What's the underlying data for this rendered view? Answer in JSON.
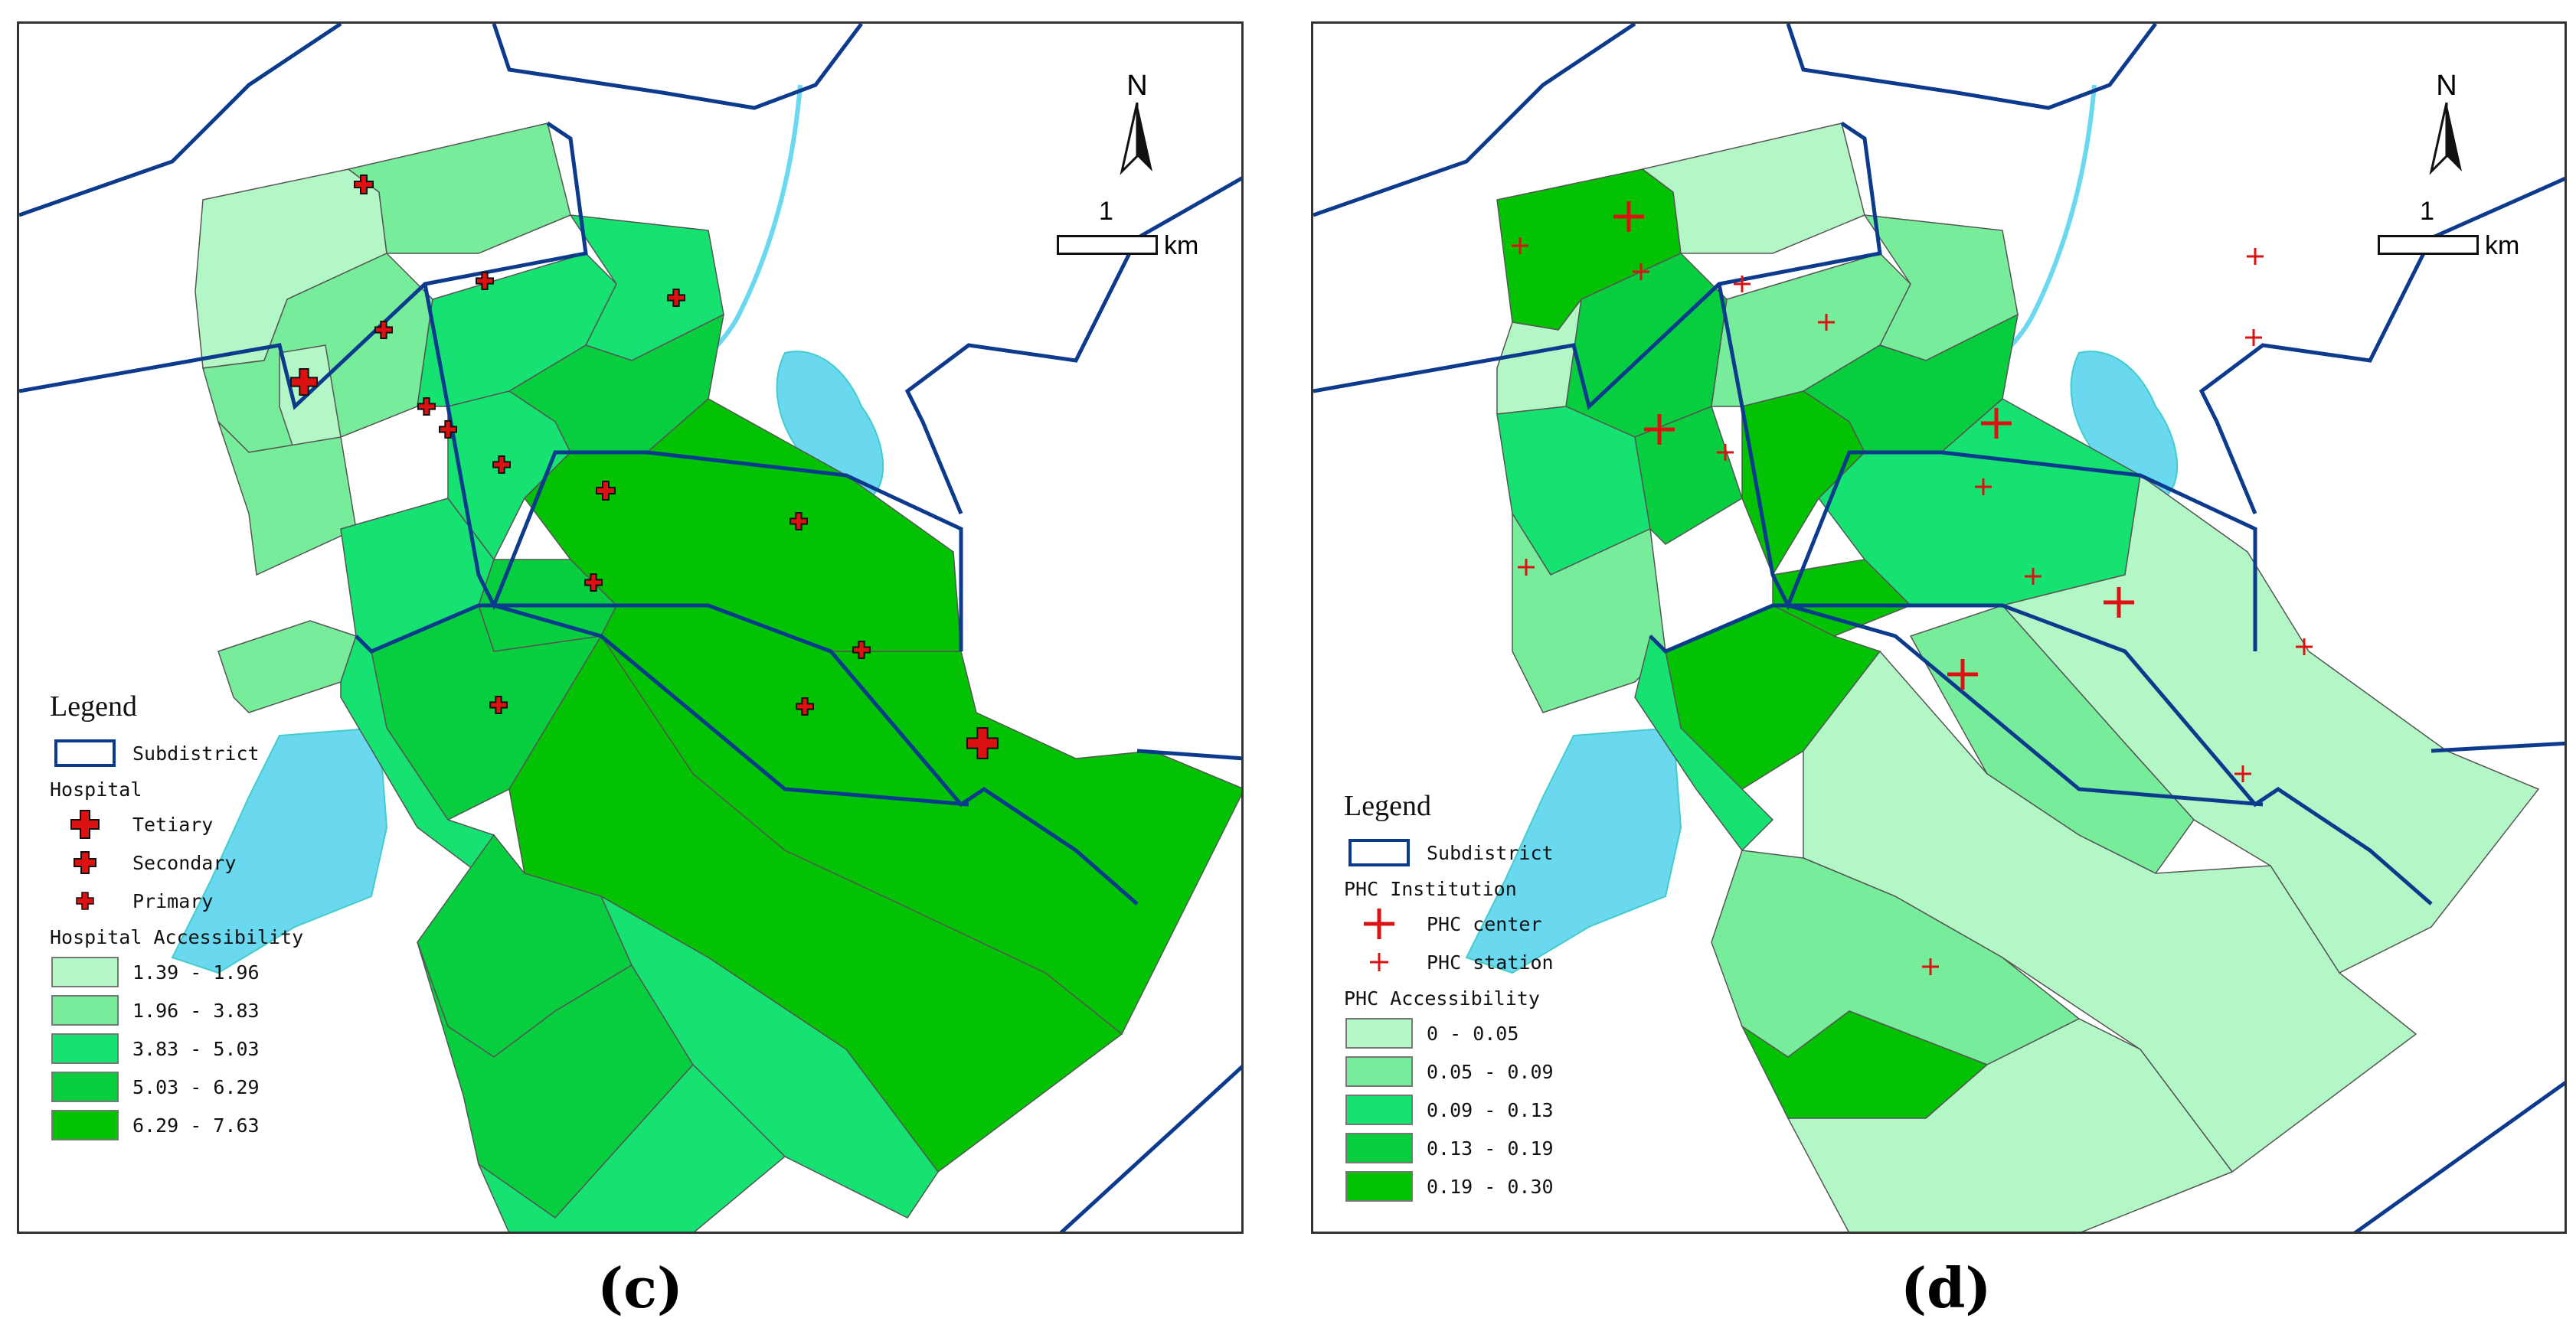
{
  "colors": {
    "water": "#6ad8ef",
    "boundary": "#0c3a8c",
    "tract_line": "#555555",
    "marker": "#dd1111",
    "class1": "#b3f7c6",
    "class2": "#77ec9a",
    "class3": "#16e271",
    "class4": "#07ce3e",
    "class5": "#03c203"
  },
  "panel_c": {
    "caption": "(c)",
    "legend": {
      "title": "Legend",
      "subdistrict": "Subdistrict",
      "facility_heading": "Hospital",
      "facilities": [
        {
          "label": "Tetiary",
          "icon": "large-red-cross-icon"
        },
        {
          "label": "Secondary",
          "icon": "medium-red-cross-icon"
        },
        {
          "label": "Primary",
          "icon": "small-red-cross-icon"
        }
      ],
      "accessibility_heading": "Hospital Accessibility",
      "classes": [
        "1.39 - 1.96",
        "1.96 - 3.83",
        "3.83 - 5.03",
        "5.03 - 6.29",
        "6.29 - 7.63"
      ]
    },
    "north_label": "N",
    "scale": {
      "value": "1",
      "unit": "km"
    }
  },
  "panel_d": {
    "caption": "(d)",
    "legend": {
      "title": "Legend",
      "subdistrict": "Subdistrict",
      "facility_heading": "PHC Institution",
      "facilities": [
        {
          "label": "PHC center",
          "icon": "large-thin-cross-icon"
        },
        {
          "label": "PHC station",
          "icon": "small-thin-cross-icon"
        }
      ],
      "accessibility_heading": "PHC Accessibility",
      "classes": [
        "0 - 0.05",
        "0.05 - 0.09",
        "0.09 - 0.13",
        "0.13 - 0.19",
        "0.19 - 0.30"
      ]
    },
    "north_label": "N",
    "scale": {
      "value": "1",
      "unit": "km"
    }
  }
}
